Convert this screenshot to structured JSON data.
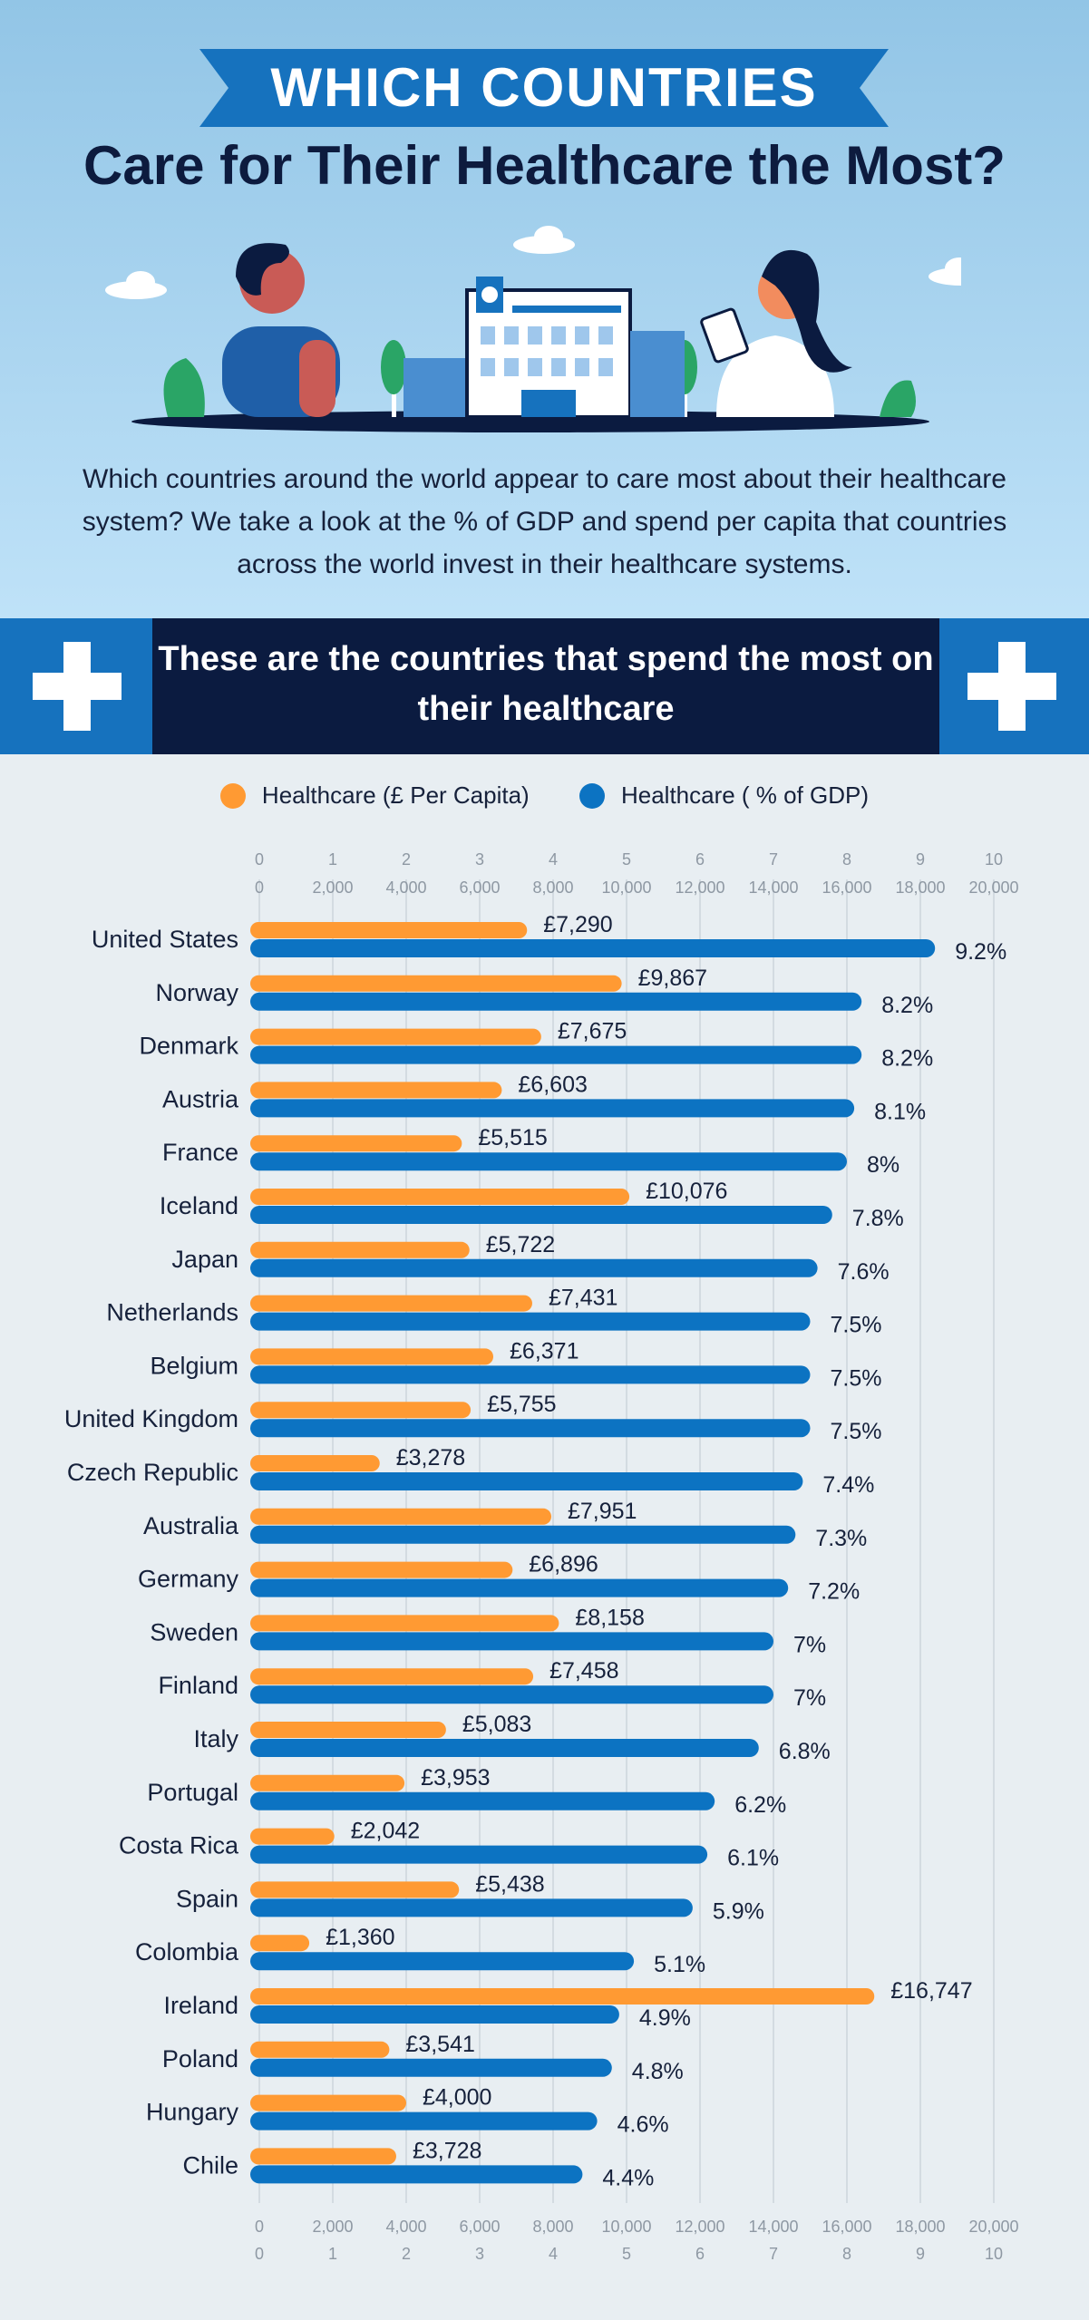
{
  "banner": {
    "text": "WHICH COUNTRIES"
  },
  "title": "Care for Their Healthcare the Most?",
  "intro": "Which countries around the world appear to care most about their healthcare system? We take a look at the % of GDP and spend per capita that countries across the world invest in their healthcare systems.",
  "section_heading": "These are the countries that spend the most on their healthcare",
  "legend": {
    "capita_label": "Healthcare  (£ Per Capita)",
    "gdp_label": "Healthcare  ( % of GDP)"
  },
  "colors": {
    "capita": "#ff9a33",
    "gdp": "#0c73c2",
    "navy": "#0b1b40",
    "banner": "#1672be"
  },
  "icons": [
    "medical-cross-icon",
    "doctor-illustration",
    "hospital-illustration",
    "cloud-icon",
    "tree-icon"
  ],
  "chart_data": {
    "type": "bar",
    "orientation": "horizontal",
    "categories": [
      "United States",
      "Norway",
      "Denmark",
      "Austria",
      "France",
      "Iceland",
      "Japan",
      "Netherlands",
      "Belgium",
      "United Kingdom",
      "Czech Republic",
      "Australia",
      "Germany",
      "Sweden",
      "Finland",
      "Italy",
      "Portugal",
      "Costa Rica",
      "Spain",
      "Colombia",
      "Ireland",
      "Poland",
      "Hungary",
      "Chile"
    ],
    "series": [
      {
        "name": "Healthcare  (£ Per Capita)",
        "axis": "capita",
        "values": [
          7290,
          9867,
          7675,
          6603,
          5515,
          10076,
          5722,
          7431,
          6371,
          5755,
          3278,
          7951,
          6896,
          8158,
          7458,
          5083,
          3953,
          2042,
          5438,
          1360,
          16747,
          3541,
          4000,
          3728
        ],
        "labels": [
          "£7,290",
          "£9,867",
          "£7,675",
          "£6,603",
          "£5,515",
          "£10,076",
          "£5,722",
          "£7,431",
          "£6,371",
          "£5,755",
          "£3,278",
          "£7,951",
          "£6,896",
          "£8,158",
          "£7,458",
          "£5,083",
          "£3,953",
          "£2,042",
          "£5,438",
          "£1,360",
          "£16,747",
          "£3,541",
          "£4,000",
          "£3,728"
        ]
      },
      {
        "name": "Healthcare  ( % of GDP)",
        "axis": "gdp",
        "values": [
          9.2,
          8.2,
          8.2,
          8.1,
          8,
          7.8,
          7.6,
          7.5,
          7.5,
          7.5,
          7.4,
          7.3,
          7.2,
          7,
          7,
          6.8,
          6.2,
          6.1,
          5.9,
          5.1,
          4.9,
          4.8,
          4.6,
          4.4
        ],
        "labels": [
          "9.2%",
          "8.2%",
          "8.2%",
          "8.1%",
          "8%",
          "7.8%",
          "7.6%",
          "7.5%",
          "7.5%",
          "7.5%",
          "7.4%",
          "7.3%",
          "7.2%",
          "7%",
          "7%",
          "6.8%",
          "6.2%",
          "6.1%",
          "5.9%",
          "5.1%",
          "4.9%",
          "4.8%",
          "4.6%",
          "4.4%"
        ]
      }
    ],
    "gdp_axis": {
      "ticks": [
        "0",
        "1",
        "2",
        "3",
        "4",
        "5",
        "6",
        "7",
        "8",
        "9",
        "10"
      ],
      "range": [
        0,
        10
      ]
    },
    "capita_axis": {
      "ticks": [
        "0",
        "2,000",
        "4,000",
        "6,000",
        "8,000",
        "10,000",
        "12,000",
        "14,000",
        "16,000",
        "18,000",
        "20,000"
      ],
      "range": [
        0,
        20000
      ]
    },
    "grid": true,
    "legend_position": "top"
  }
}
